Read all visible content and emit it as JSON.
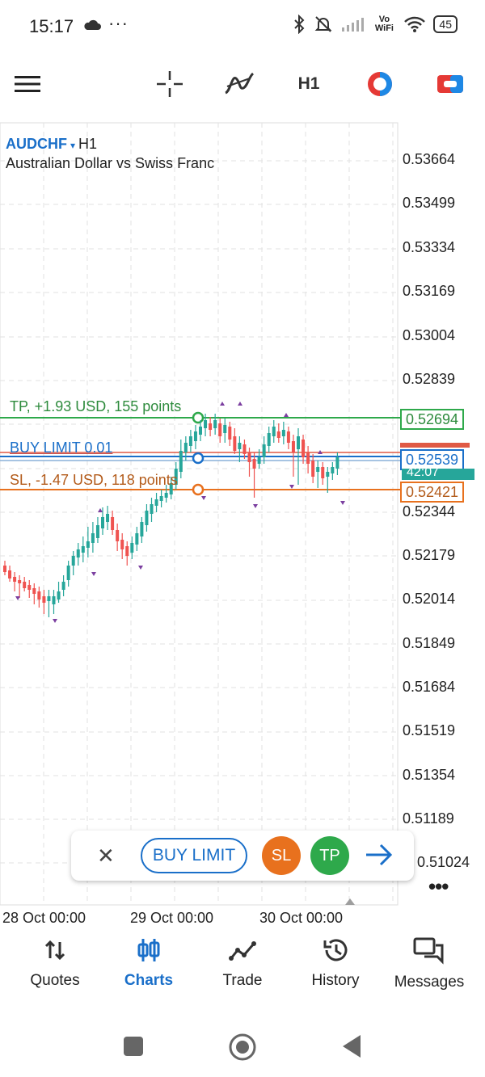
{
  "status_bar": {
    "time": "15:17",
    "dots": "···",
    "vowifi": "Vo WiFi",
    "battery": "45"
  },
  "toolbar": {
    "menu": "menu-icon",
    "crosshair": "crosshair-icon",
    "indicators": "indicators-icon",
    "timeframe": "H1",
    "colors": "chart-color-icon",
    "objects": "objects-icon"
  },
  "chart_header": {
    "symbol": "AUDCHF",
    "caret": "▾",
    "timeframe": "H1",
    "description": "Australian Dollar vs Swiss Franc"
  },
  "price_scale": [
    "0.53664",
    "0.53499",
    "0.53334",
    "0.53169",
    "0.53004",
    "0.52839",
    "0.52344",
    "0.52179",
    "0.52014",
    "0.51849",
    "0.51684",
    "0.51519",
    "0.51354",
    "0.51189",
    "0.51024"
  ],
  "price_tags": {
    "tp": "0.52694",
    "buy_limit": "0.52539",
    "timer": "42:07",
    "sl": "0.52421"
  },
  "line_labels": {
    "tp": "TP, +1.93 USD, 155 points",
    "buy_limit": "BUY LIMIT 0.01",
    "sl": "SL, -1.47 USD, 118 points"
  },
  "time_axis": [
    "28 Oct 00:00",
    "29 Oct 00:00",
    "30 Oct 00:00"
  ],
  "order_bar": {
    "close": "✕",
    "buy_limit": "BUY LIMIT",
    "sl": "SL",
    "tp": "TP",
    "confirm": "arrow-right-icon"
  },
  "more": "•••",
  "bottom_nav": [
    {
      "label": "Quotes",
      "icon": "quotes-icon"
    },
    {
      "label": "Charts",
      "icon": "charts-icon"
    },
    {
      "label": "Trade",
      "icon": "trade-icon"
    },
    {
      "label": "History",
      "icon": "history-icon"
    },
    {
      "label": "Messages",
      "icon": "messages-icon"
    }
  ],
  "colors": {
    "accent": "#1a6fc9",
    "tp": "#2ea94b",
    "sl": "#e8711e",
    "bull": "#26a69a",
    "bear": "#ef5350"
  }
}
